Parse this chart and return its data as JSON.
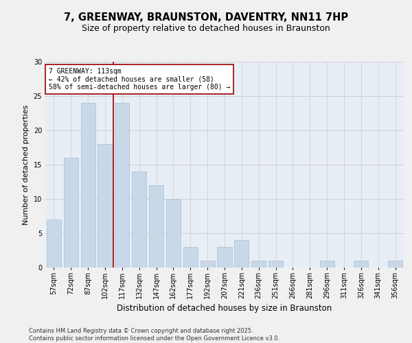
{
  "title": "7, GREENWAY, BRAUNSTON, DAVENTRY, NN11 7HP",
  "subtitle": "Size of property relative to detached houses in Braunston",
  "xlabel": "Distribution of detached houses by size in Braunston",
  "ylabel": "Number of detached properties",
  "categories": [
    "57sqm",
    "72sqm",
    "87sqm",
    "102sqm",
    "117sqm",
    "132sqm",
    "147sqm",
    "162sqm",
    "177sqm",
    "192sqm",
    "207sqm",
    "221sqm",
    "236sqm",
    "251sqm",
    "266sqm",
    "281sqm",
    "296sqm",
    "311sqm",
    "326sqm",
    "341sqm",
    "356sqm"
  ],
  "values": [
    7,
    16,
    24,
    18,
    24,
    14,
    12,
    10,
    3,
    1,
    3,
    4,
    1,
    1,
    0,
    0,
    1,
    0,
    1,
    0,
    1
  ],
  "bar_color": "#c8d8e8",
  "bar_edgecolor": "#a8bece",
  "vline_index": 4,
  "vline_color": "#990000",
  "annotation_text": "7 GREENWAY: 113sqm\n← 42% of detached houses are smaller (58)\n58% of semi-detached houses are larger (80) →",
  "annotation_box_edgecolor": "#990000",
  "ylim": [
    0,
    30
  ],
  "yticks": [
    0,
    5,
    10,
    15,
    20,
    25,
    30
  ],
  "grid_color": "#cccccc",
  "background_color": "#e8eef6",
  "fig_facecolor": "#f0f0f0",
  "footer_text": "Contains HM Land Registry data © Crown copyright and database right 2025.\nContains public sector information licensed under the Open Government Licence v3.0.",
  "title_fontsize": 10.5,
  "subtitle_fontsize": 9,
  "xlabel_fontsize": 8.5,
  "ylabel_fontsize": 8,
  "tick_fontsize": 7,
  "annotation_fontsize": 7,
  "footer_fontsize": 6
}
